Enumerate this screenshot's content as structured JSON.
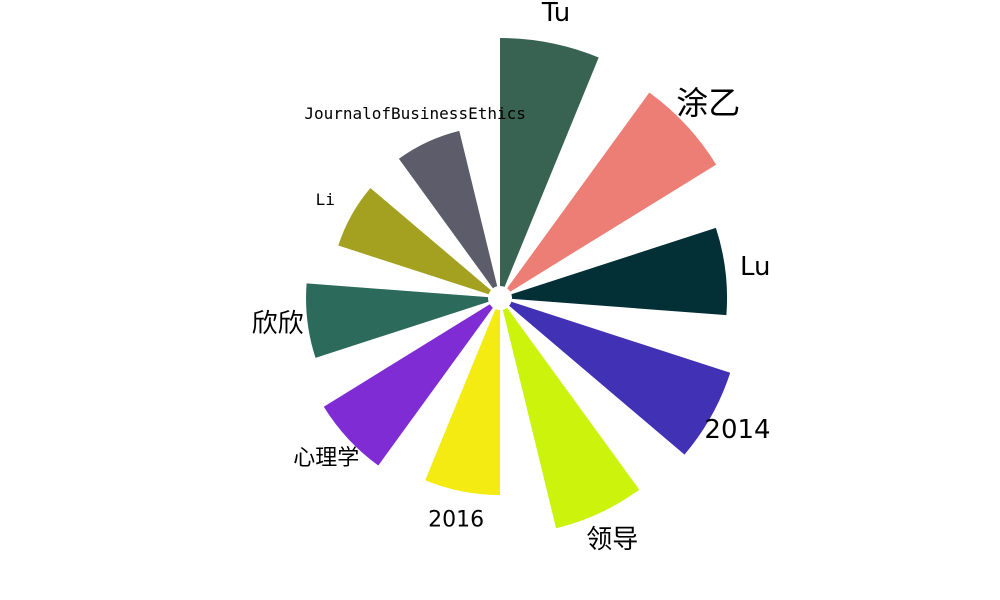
{
  "chart_data": {
    "type": "polar-bar",
    "title": "",
    "categories": [
      "Tu",
      "涂乙",
      "Lu",
      "2014",
      "领导",
      "2016",
      "心理学",
      "欣欣",
      "Li",
      "JournalofBusinessEthics"
    ],
    "values": [
      248,
      242,
      215,
      230,
      225,
      185,
      195,
      182,
      158,
      160
    ],
    "colors": [
      "#386353",
      "#ed7e76",
      "#032f36",
      "#4131b4",
      "#cbf30c",
      "#f3eb11",
      "#802cd4",
      "#2c6b5c",
      "#a4a121",
      "#5d5c6a"
    ],
    "label_sizes": [
      "large",
      "xlarge",
      "large",
      "large",
      "large",
      "medium",
      "medium",
      "large",
      "small",
      "small"
    ],
    "grid": false,
    "legend": "none"
  }
}
